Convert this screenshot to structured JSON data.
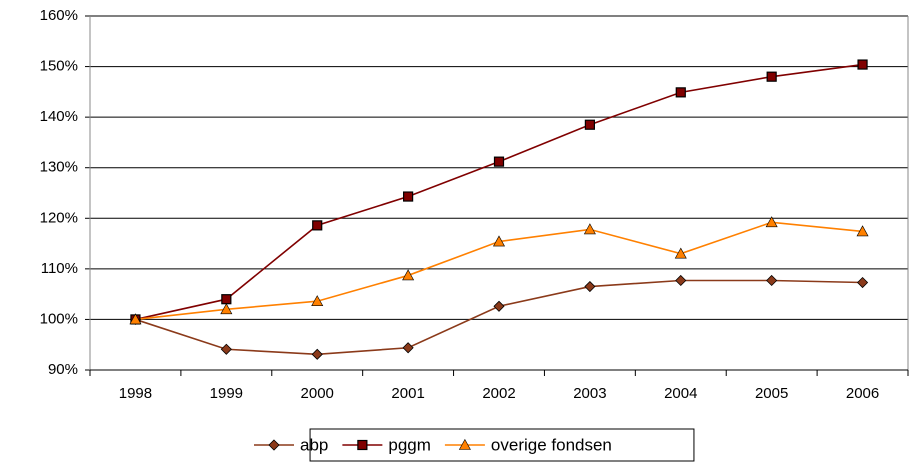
{
  "chart_data": {
    "type": "line",
    "categories": [
      "1998",
      "1999",
      "2000",
      "2001",
      "2002",
      "2003",
      "2004",
      "2005",
      "2006"
    ],
    "series": [
      {
        "name": "abp",
        "color": "#8b3a1a",
        "marker": "diamond",
        "values": [
          100,
          94.1,
          93.1,
          94.4,
          102.6,
          106.5,
          107.7,
          107.7,
          107.3
        ]
      },
      {
        "name": "pggm",
        "color": "#800000",
        "marker": "square",
        "values": [
          100,
          104,
          118.6,
          124.3,
          131.2,
          138.5,
          144.9,
          148,
          150.4
        ]
      },
      {
        "name": "overige fondsen",
        "color": "#ff8000",
        "marker": "triangle",
        "values": [
          100,
          102,
          103.6,
          108.7,
          115.4,
          117.8,
          113,
          119.2,
          117.4
        ]
      }
    ],
    "ylim": [
      90,
      160
    ],
    "yticks": [
      {
        "value": 90,
        "label": "90%"
      },
      {
        "value": 100,
        "label": "100%"
      },
      {
        "value": 110,
        "label": "110%"
      },
      {
        "value": 120,
        "label": "120%"
      },
      {
        "value": 130,
        "label": "130%"
      },
      {
        "value": 140,
        "label": "140%"
      },
      {
        "value": 150,
        "label": "150%"
      },
      {
        "value": 160,
        "label": "160%"
      }
    ],
    "grid": true,
    "legend": "bottom"
  }
}
